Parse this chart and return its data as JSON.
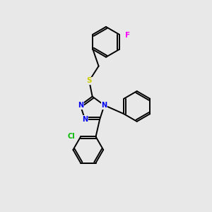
{
  "background_color": "#e8e8e8",
  "bond_color": "#000000",
  "N_color": "#0000ee",
  "S_color": "#cccc00",
  "Cl_color": "#00bb00",
  "F_color": "#ff00ff",
  "line_width": 1.4,
  "figsize": [
    3.0,
    3.0
  ],
  "dpi": 100,
  "xlim": [
    0,
    10
  ],
  "ylim": [
    0,
    10
  ],
  "ring_r": 0.72,
  "tri_r": 0.6,
  "double_off": 0.09
}
